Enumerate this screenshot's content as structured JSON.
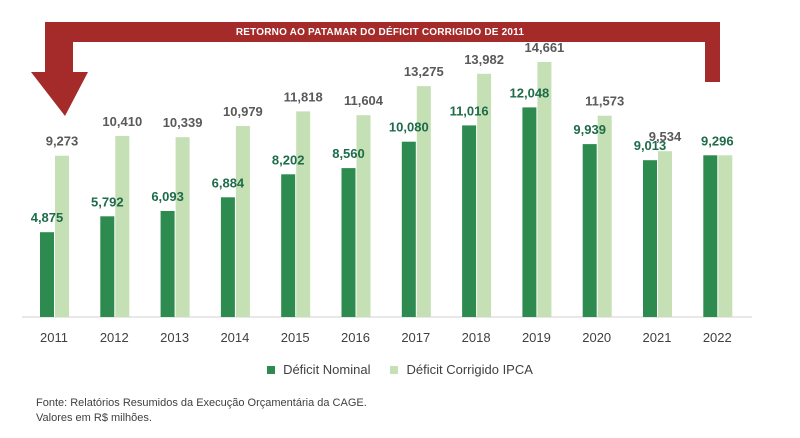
{
  "chart_data": {
    "type": "bar",
    "title": "RETORNO AO PATAMAR DO DÉFICIT CORRIGIDO DE 2011",
    "categories": [
      "2011",
      "2012",
      "2013",
      "2014",
      "2015",
      "2016",
      "2017",
      "2018",
      "2019",
      "2020",
      "2021",
      "2022"
    ],
    "series": [
      {
        "name": "Déficit Nominal",
        "color": "#2e8b4f",
        "values": [
          4875,
          5792,
          6093,
          6884,
          8202,
          8560,
          10080,
          11016,
          12048,
          9939,
          9013,
          9296
        ],
        "labels": [
          "4,875",
          "5,792",
          "6,093",
          "6,884",
          "8,202",
          "8,560",
          "10,080",
          "11,016",
          "12,048",
          "9,939",
          "9,013",
          "9,296"
        ]
      },
      {
        "name": "Déficit Corrigido IPCA",
        "color": "#c5e0b4",
        "values": [
          9273,
          10410,
          10339,
          10979,
          11818,
          11604,
          13275,
          13982,
          14661,
          11573,
          9534,
          9296
        ],
        "labels": [
          "9,273",
          "10,410",
          "10,339",
          "10,979",
          "11,818",
          "11,604",
          "13,275",
          "13,982",
          "14,661",
          "11,573",
          "9,534",
          ""
        ]
      }
    ],
    "ylim": [
      0,
      16500
    ],
    "xlabel": "",
    "ylabel": "",
    "legend_position": "bottom",
    "banner_color": "#a52a2a"
  },
  "legend": {
    "nominal": "Déficit Nominal",
    "ipca": "Déficit Corrigido IPCA"
  },
  "footer": {
    "line1": "Fonte: Relatórios Resumidos da Execução Orçamentária da CAGE.",
    "line2": "Valores em R$ milhões."
  }
}
